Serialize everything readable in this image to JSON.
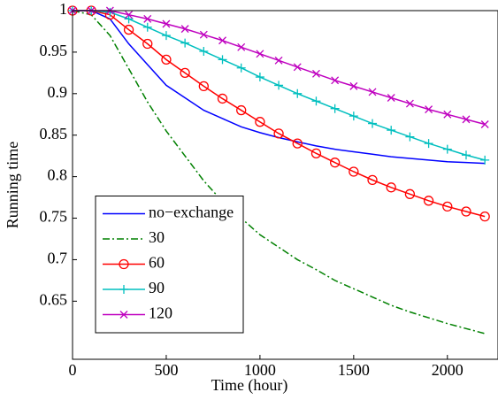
{
  "chart_data": {
    "type": "line",
    "x_label": "Time (hour)",
    "y_label": "Running time",
    "x": [
      0,
      100,
      200,
      300,
      400,
      500,
      600,
      700,
      800,
      900,
      1000,
      1100,
      1200,
      1300,
      1400,
      1500,
      1600,
      1700,
      1800,
      1900,
      2000,
      2100,
      2200
    ],
    "series": [
      {
        "name": "no−exchange",
        "color": "#0000ff",
        "dash": "solid",
        "marker": "none",
        "values": [
          1,
          1,
          0.99,
          0.96,
          0.935,
          0.91,
          0.895,
          0.88,
          0.87,
          0.86,
          0.853,
          0.847,
          0.842,
          0.837,
          0.833,
          0.83,
          0.827,
          0.824,
          0.822,
          0.82,
          0.818,
          0.817,
          0.816
        ]
      },
      {
        "name": "30",
        "color": "#008000",
        "dash": "dashdot",
        "marker": "none",
        "values": [
          1,
          0.995,
          0.97,
          0.93,
          0.89,
          0.855,
          0.825,
          0.795,
          0.77,
          0.75,
          0.73,
          0.715,
          0.7,
          0.688,
          0.675,
          0.665,
          0.655,
          0.645,
          0.637,
          0.63,
          0.623,
          0.617,
          0.611
        ]
      },
      {
        "name": "60",
        "color": "#ff0000",
        "dash": "solid",
        "marker": "o",
        "values": [
          1,
          1,
          0.995,
          0.977,
          0.96,
          0.941,
          0.925,
          0.909,
          0.894,
          0.88,
          0.866,
          0.852,
          0.84,
          0.828,
          0.817,
          0.806,
          0.796,
          0.787,
          0.779,
          0.771,
          0.764,
          0.758,
          0.752
        ]
      },
      {
        "name": "90",
        "color": "#00bfbf",
        "dash": "solid",
        "marker": "+",
        "values": [
          1,
          1,
          0.998,
          0.99,
          0.98,
          0.97,
          0.961,
          0.951,
          0.941,
          0.931,
          0.92,
          0.91,
          0.9,
          0.891,
          0.882,
          0.873,
          0.864,
          0.856,
          0.848,
          0.84,
          0.833,
          0.826,
          0.82
        ]
      },
      {
        "name": "120",
        "color": "#bf00bf",
        "dash": "solid",
        "marker": "x",
        "values": [
          1,
          1,
          1,
          0.995,
          0.99,
          0.984,
          0.978,
          0.971,
          0.964,
          0.956,
          0.948,
          0.94,
          0.932,
          0.924,
          0.916,
          0.909,
          0.902,
          0.895,
          0.888,
          0.881,
          0.875,
          0.869,
          0.863
        ]
      }
    ],
    "xlim": [
      0,
      2270
    ],
    "ylim": [
      0.58,
      1
    ],
    "xticks": [
      0,
      500,
      1000,
      1500,
      2000
    ],
    "yticks": [
      0.65,
      0.7,
      0.75,
      0.8,
      0.85,
      0.9,
      0.95,
      1
    ],
    "legend": "lower left"
  }
}
